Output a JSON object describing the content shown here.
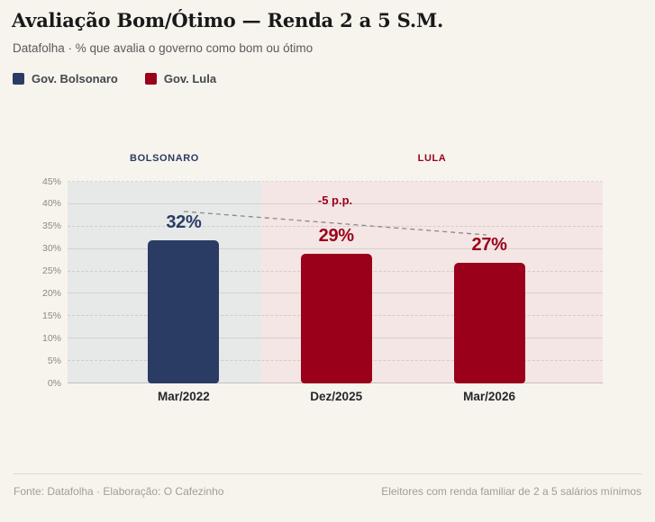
{
  "header": {
    "title": "Avaliação Bom/Ótimo — Renda 2 a 5 S.M.",
    "subtitle": "Datafolha · % que avalia o governo como bom ou ótimo",
    "legend": [
      {
        "label": "Gov. Bolsonaro",
        "color": "#2a3c64"
      },
      {
        "label": "Gov. Lula",
        "color": "#9a0019"
      }
    ]
  },
  "chart_data": {
    "type": "bar",
    "title": "Avaliação Bom/Ótimo — Renda 2 a 5 S.M.",
    "subtitle": "Datafolha · % que avalia o governo como bom ou ótimo",
    "categories": [
      "Mar/2022",
      "Dez/2025",
      "Mar/2026"
    ],
    "series": [
      {
        "name": "Gov. Bolsonaro",
        "color": "#2a3c64",
        "values": [
          32,
          null,
          null
        ]
      },
      {
        "name": "Gov. Lula",
        "color": "#9a0019",
        "values": [
          null,
          29,
          27
        ]
      }
    ],
    "points": [
      {
        "category": "Mar/2022",
        "value": 32,
        "label": "32%",
        "series": "Gov. Bolsonaro"
      },
      {
        "category": "Dez/2025",
        "value": 29,
        "label": "29%",
        "series": "Gov. Lula"
      },
      {
        "category": "Mar/2026",
        "value": 27,
        "label": "27%",
        "series": "Gov. Lula"
      }
    ],
    "annotation": "-5 p.p.",
    "sections": [
      {
        "label": "BOLSONARO",
        "color": "#2a3c64",
        "bg": "#e6e9e8"
      },
      {
        "label": "LULA",
        "color": "#9a0019",
        "bg": "#f3e6e5"
      }
    ],
    "ylim": [
      0,
      45
    ],
    "ytick_labels": [
      "0%",
      "5%",
      "10%",
      "15%",
      "20%",
      "25%",
      "30%",
      "35%",
      "40%",
      "45%"
    ],
    "grid": true,
    "legend_position": "top"
  },
  "footer": {
    "left": "Fonte: Datafolha · Elaboração: O Cafezinho",
    "right": "Eleitores com renda familiar de 2 a 5 salários mínimos"
  }
}
